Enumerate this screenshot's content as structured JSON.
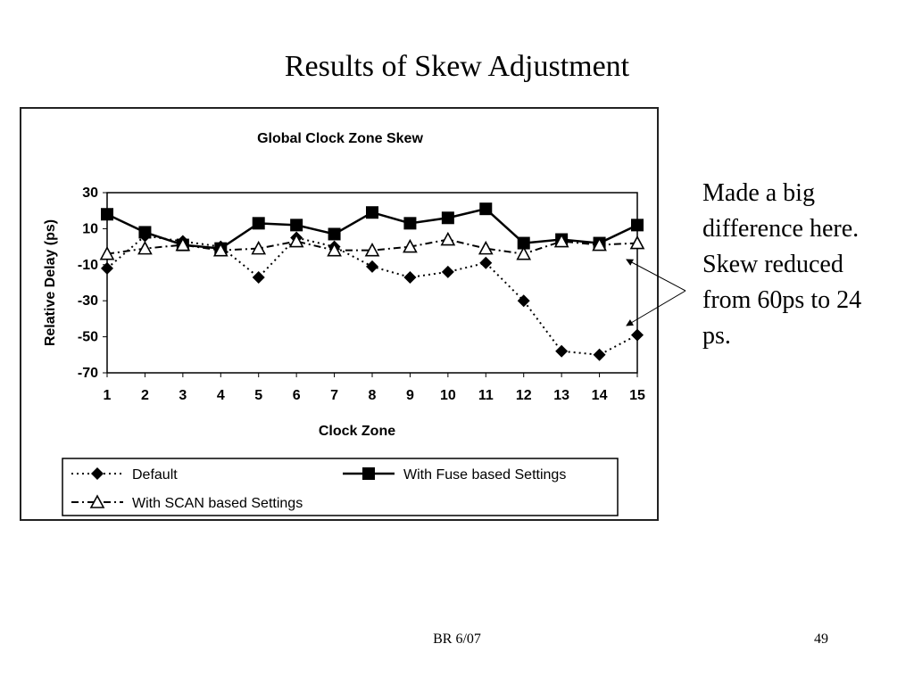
{
  "slide": {
    "title": "Results of Skew Adjustment",
    "annotation": "Made  a big difference here. Skew reduced from 60ps to 24 ps.",
    "footer": "BR 6/07",
    "page_number": "49"
  },
  "chart_data": {
    "type": "line",
    "title": "Global Clock Zone Skew",
    "xlabel": "Clock Zone",
    "ylabel": "Relative Delay (ps)",
    "x": [
      1,
      2,
      3,
      4,
      5,
      6,
      7,
      8,
      9,
      10,
      11,
      12,
      13,
      14,
      15
    ],
    "ylim": [
      -70,
      30
    ],
    "yticks": [
      30,
      10,
      -10,
      -30,
      -50,
      -70
    ],
    "legend_position": "bottom",
    "series": [
      {
        "name": "Default",
        "style": "dotted",
        "marker": "diamond",
        "values": [
          -12,
          6,
          3,
          0,
          -17,
          5,
          0,
          -11,
          -17,
          -14,
          -9,
          -30,
          -58,
          -60,
          -49
        ]
      },
      {
        "name": "With Fuse based Settings",
        "style": "solid",
        "marker": "square",
        "values": [
          18,
          8,
          1,
          -1,
          13,
          12,
          7,
          19,
          13,
          16,
          21,
          2,
          4,
          2,
          12
        ]
      },
      {
        "name": "With SCAN based Settings",
        "style": "dash-dot",
        "marker": "triangle",
        "values": [
          -4,
          -1,
          1,
          -2,
          -1,
          3,
          -2,
          -2,
          0,
          4,
          -1,
          -4,
          3,
          1,
          2
        ]
      }
    ]
  }
}
